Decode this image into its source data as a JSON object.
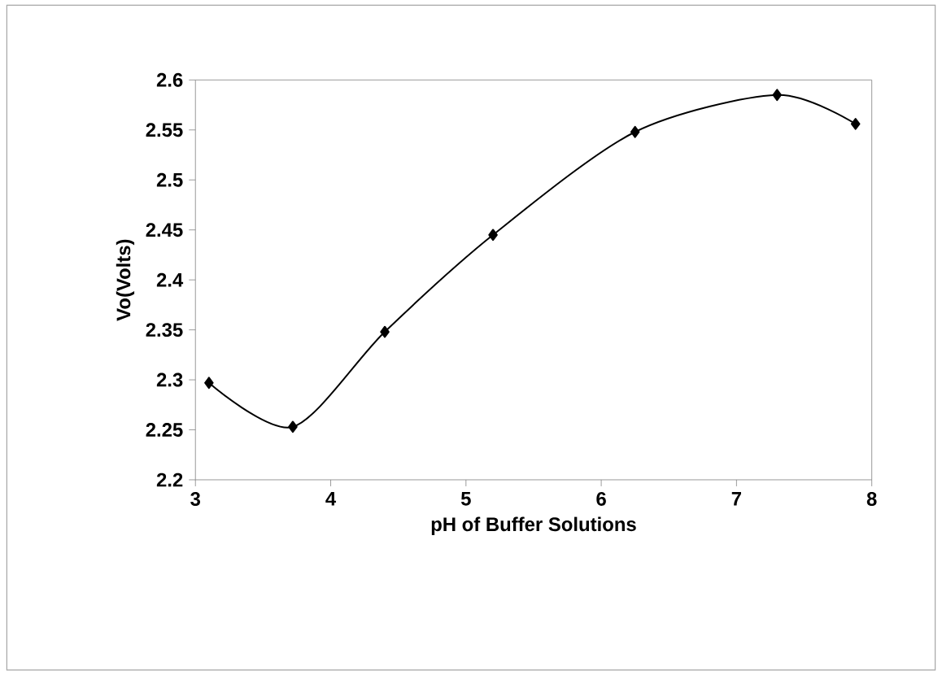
{
  "chart_data": {
    "type": "line",
    "xlabel": "pH of Buffer Solutions",
    "ylabel": "Vo(Volts)",
    "x": [
      3.1,
      3.72,
      4.4,
      5.2,
      6.25,
      7.3,
      7.88
    ],
    "series": [
      {
        "color": "#000000",
        "values": [
          2.297,
          2.253,
          2.348,
          2.445,
          2.548,
          2.585,
          2.556
        ]
      }
    ],
    "xlim": [
      3,
      8
    ],
    "ylim": [
      2.2,
      2.6
    ],
    "xticks": [
      3,
      4,
      5,
      6,
      7,
      8
    ],
    "yticks": [
      2.2,
      2.25,
      2.3,
      2.35,
      2.4,
      2.45,
      2.5,
      2.55,
      2.6
    ],
    "marker": "diamond"
  }
}
